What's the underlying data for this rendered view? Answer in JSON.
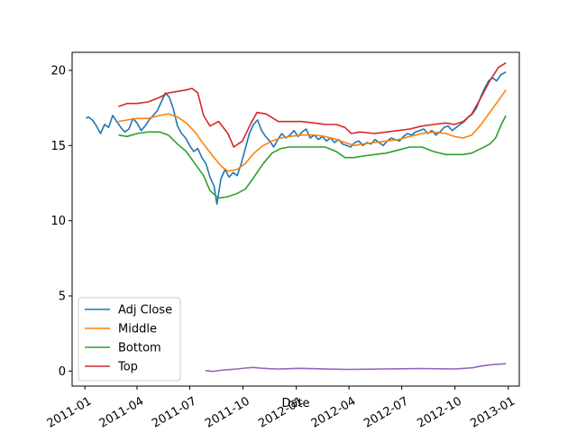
{
  "chart_data": {
    "type": "line",
    "xlabel": "Date",
    "ylabel": "",
    "xlim": [
      "2010-12-10",
      "2013-01-20"
    ],
    "ylim": [
      -1.0,
      21.2
    ],
    "grid": false,
    "legend_position": "lower-left",
    "x_ticks": [
      "2011-01",
      "2011-04",
      "2011-07",
      "2011-10",
      "2012-01",
      "2012-04",
      "2012-07",
      "2012-10",
      "2013-01"
    ],
    "y_ticks": [
      0,
      5,
      10,
      15,
      20
    ],
    "series": [
      {
        "name": "Adj Close",
        "color": "#1f77b4",
        "points": [
          [
            "2011-01-03",
            16.8
          ],
          [
            "2011-01-07",
            16.9
          ],
          [
            "2011-01-14",
            16.7
          ],
          [
            "2011-01-21",
            16.3
          ],
          [
            "2011-01-28",
            15.8
          ],
          [
            "2011-02-04",
            16.4
          ],
          [
            "2011-02-11",
            16.2
          ],
          [
            "2011-02-18",
            17.0
          ],
          [
            "2011-02-25",
            16.6
          ],
          [
            "2011-03-04",
            16.2
          ],
          [
            "2011-03-11",
            15.9
          ],
          [
            "2011-03-18",
            16.1
          ],
          [
            "2011-03-25",
            16.8
          ],
          [
            "2011-04-01",
            16.5
          ],
          [
            "2011-04-08",
            16.0
          ],
          [
            "2011-04-15",
            16.3
          ],
          [
            "2011-04-22",
            16.7
          ],
          [
            "2011-04-29",
            17.0
          ],
          [
            "2011-05-06",
            17.3
          ],
          [
            "2011-05-13",
            17.9
          ],
          [
            "2011-05-20",
            18.5
          ],
          [
            "2011-05-27",
            18.2
          ],
          [
            "2011-06-03",
            17.4
          ],
          [
            "2011-06-10",
            16.3
          ],
          [
            "2011-06-17",
            15.8
          ],
          [
            "2011-06-24",
            15.5
          ],
          [
            "2011-07-01",
            15.0
          ],
          [
            "2011-07-08",
            14.6
          ],
          [
            "2011-07-15",
            14.8
          ],
          [
            "2011-07-22",
            14.2
          ],
          [
            "2011-07-29",
            13.8
          ],
          [
            "2011-08-05",
            12.9
          ],
          [
            "2011-08-12",
            12.3
          ],
          [
            "2011-08-17",
            11.1
          ],
          [
            "2011-08-24",
            12.8
          ],
          [
            "2011-08-31",
            13.4
          ],
          [
            "2011-09-07",
            12.9
          ],
          [
            "2011-09-14",
            13.2
          ],
          [
            "2011-09-21",
            13.0
          ],
          [
            "2011-09-28",
            13.8
          ],
          [
            "2011-10-05",
            14.8
          ],
          [
            "2011-10-12",
            15.8
          ],
          [
            "2011-10-19",
            16.4
          ],
          [
            "2011-10-26",
            16.7
          ],
          [
            "2011-11-02",
            16.0
          ],
          [
            "2011-11-09",
            15.6
          ],
          [
            "2011-11-16",
            15.3
          ],
          [
            "2011-11-23",
            14.9
          ],
          [
            "2011-11-30",
            15.4
          ],
          [
            "2011-12-07",
            15.8
          ],
          [
            "2011-12-14",
            15.5
          ],
          [
            "2011-12-21",
            15.7
          ],
          [
            "2011-12-28",
            16.0
          ],
          [
            "2012-01-04",
            15.6
          ],
          [
            "2012-01-11",
            15.9
          ],
          [
            "2012-01-18",
            16.1
          ],
          [
            "2012-01-25",
            15.5
          ],
          [
            "2012-02-01",
            15.7
          ],
          [
            "2012-02-08",
            15.4
          ],
          [
            "2012-02-15",
            15.6
          ],
          [
            "2012-02-22",
            15.3
          ],
          [
            "2012-02-29",
            15.5
          ],
          [
            "2012-03-07",
            15.2
          ],
          [
            "2012-03-14",
            15.4
          ],
          [
            "2012-03-21",
            15.1
          ],
          [
            "2012-03-28",
            15.0
          ],
          [
            "2012-04-04",
            14.9
          ],
          [
            "2012-04-11",
            15.2
          ],
          [
            "2012-04-18",
            15.3
          ],
          [
            "2012-04-25",
            15.0
          ],
          [
            "2012-05-02",
            15.2
          ],
          [
            "2012-05-09",
            15.1
          ],
          [
            "2012-05-16",
            15.4
          ],
          [
            "2012-05-23",
            15.2
          ],
          [
            "2012-05-30",
            15.0
          ],
          [
            "2012-06-06",
            15.3
          ],
          [
            "2012-06-13",
            15.5
          ],
          [
            "2012-06-20",
            15.4
          ],
          [
            "2012-06-27",
            15.3
          ],
          [
            "2012-07-04",
            15.6
          ],
          [
            "2012-07-11",
            15.8
          ],
          [
            "2012-07-18",
            15.7
          ],
          [
            "2012-07-25",
            15.9
          ],
          [
            "2012-08-01",
            16.0
          ],
          [
            "2012-08-08",
            16.1
          ],
          [
            "2012-08-15",
            15.8
          ],
          [
            "2012-08-22",
            16.0
          ],
          [
            "2012-08-29",
            15.7
          ],
          [
            "2012-09-05",
            15.9
          ],
          [
            "2012-09-12",
            16.2
          ],
          [
            "2012-09-19",
            16.3
          ],
          [
            "2012-09-26",
            16.0
          ],
          [
            "2012-10-03",
            16.2
          ],
          [
            "2012-10-10",
            16.4
          ],
          [
            "2012-10-17",
            16.6
          ],
          [
            "2012-10-24",
            16.9
          ],
          [
            "2012-10-31",
            17.1
          ],
          [
            "2012-11-07",
            17.5
          ],
          [
            "2012-11-14",
            18.2
          ],
          [
            "2012-11-21",
            18.8
          ],
          [
            "2012-11-28",
            19.3
          ],
          [
            "2012-12-05",
            19.5
          ],
          [
            "2012-12-12",
            19.3
          ],
          [
            "2012-12-19",
            19.7
          ],
          [
            "2012-12-28",
            19.9
          ]
        ]
      },
      {
        "name": "Middle",
        "color": "#ff7f0e",
        "points": [
          [
            "2011-02-28",
            16.6
          ],
          [
            "2011-03-15",
            16.7
          ],
          [
            "2011-04-01",
            16.8
          ],
          [
            "2011-04-20",
            16.8
          ],
          [
            "2011-05-10",
            17.0
          ],
          [
            "2011-05-25",
            17.1
          ],
          [
            "2011-06-10",
            16.9
          ],
          [
            "2011-06-25",
            16.5
          ],
          [
            "2011-07-10",
            15.9
          ],
          [
            "2011-07-25",
            15.1
          ],
          [
            "2011-08-10",
            14.3
          ],
          [
            "2011-08-25",
            13.6
          ],
          [
            "2011-09-05",
            13.3
          ],
          [
            "2011-09-20",
            13.4
          ],
          [
            "2011-10-05",
            13.8
          ],
          [
            "2011-10-20",
            14.5
          ],
          [
            "2011-11-05",
            15.0
          ],
          [
            "2011-11-20",
            15.3
          ],
          [
            "2011-12-05",
            15.5
          ],
          [
            "2011-12-20",
            15.6
          ],
          [
            "2012-01-10",
            15.7
          ],
          [
            "2012-02-01",
            15.7
          ],
          [
            "2012-02-20",
            15.6
          ],
          [
            "2012-03-10",
            15.4
          ],
          [
            "2012-03-25",
            15.2
          ],
          [
            "2012-04-10",
            15.0
          ],
          [
            "2012-04-25",
            15.1
          ],
          [
            "2012-05-15",
            15.2
          ],
          [
            "2012-06-05",
            15.3
          ],
          [
            "2012-06-25",
            15.4
          ],
          [
            "2012-07-15",
            15.6
          ],
          [
            "2012-08-05",
            15.8
          ],
          [
            "2012-08-25",
            15.9
          ],
          [
            "2012-09-15",
            15.8
          ],
          [
            "2012-09-30",
            15.6
          ],
          [
            "2012-10-15",
            15.5
          ],
          [
            "2012-10-30",
            15.7
          ],
          [
            "2012-11-15",
            16.4
          ],
          [
            "2012-11-30",
            17.2
          ],
          [
            "2012-12-15",
            18.0
          ],
          [
            "2012-12-28",
            18.7
          ]
        ]
      },
      {
        "name": "Bottom",
        "color": "#2ca02c",
        "points": [
          [
            "2011-02-28",
            15.7
          ],
          [
            "2011-03-15",
            15.6
          ],
          [
            "2011-04-01",
            15.8
          ],
          [
            "2011-04-20",
            15.9
          ],
          [
            "2011-05-10",
            15.9
          ],
          [
            "2011-05-25",
            15.7
          ],
          [
            "2011-06-10",
            15.1
          ],
          [
            "2011-06-25",
            14.6
          ],
          [
            "2011-07-10",
            13.8
          ],
          [
            "2011-07-25",
            13.0
          ],
          [
            "2011-08-05",
            12.0
          ],
          [
            "2011-08-20",
            11.5
          ],
          [
            "2011-09-05",
            11.6
          ],
          [
            "2011-09-20",
            11.8
          ],
          [
            "2011-10-05",
            12.1
          ],
          [
            "2011-10-20",
            12.9
          ],
          [
            "2011-11-05",
            13.8
          ],
          [
            "2011-11-20",
            14.5
          ],
          [
            "2011-12-05",
            14.8
          ],
          [
            "2011-12-20",
            14.9
          ],
          [
            "2012-01-10",
            14.9
          ],
          [
            "2012-02-01",
            14.9
          ],
          [
            "2012-02-20",
            14.9
          ],
          [
            "2012-03-10",
            14.6
          ],
          [
            "2012-03-25",
            14.2
          ],
          [
            "2012-04-10",
            14.2
          ],
          [
            "2012-04-25",
            14.3
          ],
          [
            "2012-05-15",
            14.4
          ],
          [
            "2012-06-05",
            14.5
          ],
          [
            "2012-06-25",
            14.7
          ],
          [
            "2012-07-15",
            14.9
          ],
          [
            "2012-08-05",
            14.9
          ],
          [
            "2012-08-25",
            14.6
          ],
          [
            "2012-09-15",
            14.4
          ],
          [
            "2012-09-30",
            14.4
          ],
          [
            "2012-10-15",
            14.4
          ],
          [
            "2012-10-30",
            14.5
          ],
          [
            "2012-11-15",
            14.8
          ],
          [
            "2012-11-30",
            15.1
          ],
          [
            "2012-12-10",
            15.5
          ],
          [
            "2012-12-20",
            16.4
          ],
          [
            "2012-12-28",
            17.0
          ]
        ]
      },
      {
        "name": "Top",
        "color": "#d62728",
        "points": [
          [
            "2011-02-28",
            17.6
          ],
          [
            "2011-03-15",
            17.8
          ],
          [
            "2011-04-01",
            17.8
          ],
          [
            "2011-04-20",
            17.9
          ],
          [
            "2011-05-10",
            18.2
          ],
          [
            "2011-05-25",
            18.5
          ],
          [
            "2011-06-10",
            18.6
          ],
          [
            "2011-06-25",
            18.7
          ],
          [
            "2011-07-05",
            18.8
          ],
          [
            "2011-07-15",
            18.5
          ],
          [
            "2011-07-25",
            17.0
          ],
          [
            "2011-08-05",
            16.3
          ],
          [
            "2011-08-20",
            16.6
          ],
          [
            "2011-09-05",
            15.8
          ],
          [
            "2011-09-15",
            14.9
          ],
          [
            "2011-09-30",
            15.3
          ],
          [
            "2011-10-15",
            16.5
          ],
          [
            "2011-10-25",
            17.2
          ],
          [
            "2011-11-10",
            17.1
          ],
          [
            "2011-12-01",
            16.6
          ],
          [
            "2011-12-20",
            16.6
          ],
          [
            "2012-01-10",
            16.6
          ],
          [
            "2012-02-01",
            16.5
          ],
          [
            "2012-02-20",
            16.4
          ],
          [
            "2012-03-10",
            16.4
          ],
          [
            "2012-03-25",
            16.2
          ],
          [
            "2012-04-05",
            15.8
          ],
          [
            "2012-04-20",
            15.9
          ],
          [
            "2012-05-15",
            15.8
          ],
          [
            "2012-06-05",
            15.9
          ],
          [
            "2012-06-25",
            16.0
          ],
          [
            "2012-07-15",
            16.1
          ],
          [
            "2012-08-05",
            16.3
          ],
          [
            "2012-08-25",
            16.4
          ],
          [
            "2012-09-15",
            16.5
          ],
          [
            "2012-09-30",
            16.4
          ],
          [
            "2012-10-15",
            16.6
          ],
          [
            "2012-10-30",
            17.1
          ],
          [
            "2012-11-15",
            18.2
          ],
          [
            "2012-11-30",
            19.3
          ],
          [
            "2012-12-15",
            20.2
          ],
          [
            "2012-12-28",
            20.5
          ]
        ]
      },
      {
        "name": "",
        "color": "#9467bd",
        "points": [
          [
            "2011-07-28",
            0.03
          ],
          [
            "2011-08-10",
            -0.02
          ],
          [
            "2011-08-24",
            0.05
          ],
          [
            "2011-09-07",
            0.1
          ],
          [
            "2011-09-21",
            0.14
          ],
          [
            "2011-10-05",
            0.2
          ],
          [
            "2011-10-19",
            0.24
          ],
          [
            "2011-11-02",
            0.19
          ],
          [
            "2011-11-16",
            0.16
          ],
          [
            "2011-12-01",
            0.14
          ],
          [
            "2011-12-15",
            0.15
          ],
          [
            "2012-01-04",
            0.18
          ],
          [
            "2012-02-01",
            0.16
          ],
          [
            "2012-03-01",
            0.13
          ],
          [
            "2012-04-02",
            0.11
          ],
          [
            "2012-05-01",
            0.12
          ],
          [
            "2012-06-01",
            0.14
          ],
          [
            "2012-07-02",
            0.15
          ],
          [
            "2012-08-01",
            0.17
          ],
          [
            "2012-09-04",
            0.15
          ],
          [
            "2012-10-01",
            0.14
          ],
          [
            "2012-10-31",
            0.22
          ],
          [
            "2012-11-15",
            0.33
          ],
          [
            "2012-12-03",
            0.42
          ],
          [
            "2012-12-28",
            0.49
          ]
        ]
      }
    ]
  }
}
